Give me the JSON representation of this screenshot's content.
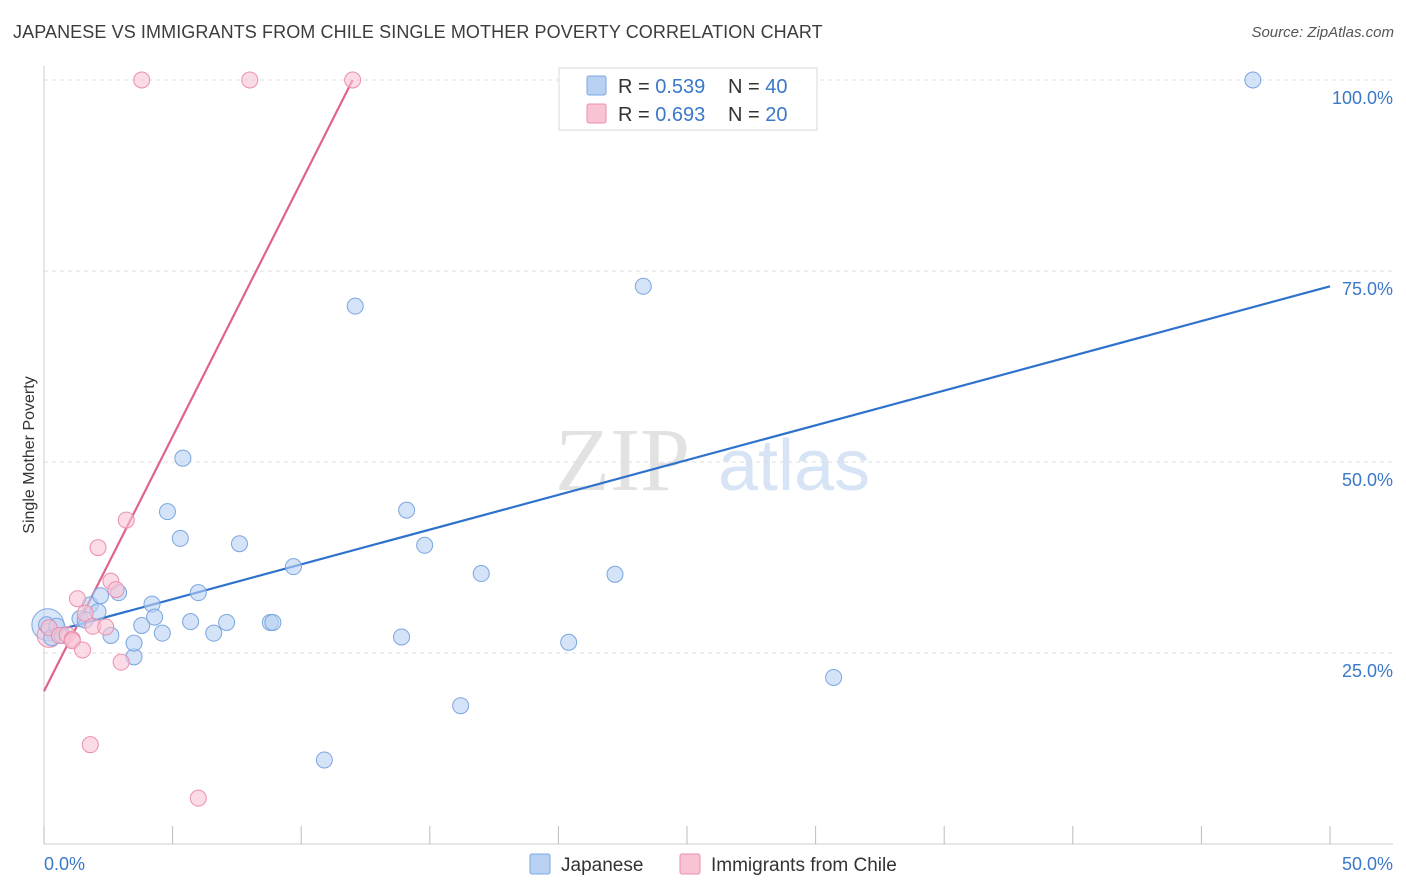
{
  "title": "JAPANESE VS IMMIGRANTS FROM CHILE SINGLE MOTHER POVERTY CORRELATION CHART",
  "source": "Source: ZipAtlas.com",
  "watermark": {
    "zip": "ZIP",
    "atlas": "atlas"
  },
  "legend": {
    "japanese": {
      "r_label": "R = ",
      "r_value": "0.539",
      "n_label": "N = ",
      "n_value": "40"
    },
    "chile": {
      "r_label": "R = ",
      "r_value": "0.693",
      "n_label": "N = ",
      "n_value": "20"
    }
  },
  "bottom_legend": {
    "japanese": "Japanese",
    "chile": "Immigrants from Chile"
  },
  "colors": {
    "blue_fill": "#b8d1f3",
    "blue_stroke": "#7aa6e0",
    "blue_line": "#2e72cc",
    "pink_fill": "#f8c3d3",
    "pink_stroke": "#ec8fad",
    "pink_line": "#e0628e",
    "grid": "#dddddd",
    "axis_text": "#3a78c8"
  },
  "chart_data": {
    "type": "scatter",
    "title": "JAPANESE VS IMMIGRANTS FROM CHILE SINGLE MOTHER POVERTY CORRELATION CHART",
    "xlabel": "",
    "ylabel": "Single Mother Poverty",
    "xlim": [
      0,
      50
    ],
    "ylim": [
      0,
      100
    ],
    "x_tick_labels": [
      "0.0%",
      "50.0%"
    ],
    "y_ticks": [
      25,
      50,
      75,
      100
    ],
    "y_tick_labels": [
      "25.0%",
      "50.0%",
      "75.0%",
      "100.0%"
    ],
    "series": [
      {
        "name": "Japanese",
        "color": "#b8d1f3",
        "r": 0.539,
        "n": 40,
        "points": [
          [
            0.1,
            28.7
          ],
          [
            0.3,
            27.0
          ],
          [
            0.5,
            28.5
          ],
          [
            0.7,
            27.3
          ],
          [
            1.4,
            29.5
          ],
          [
            1.6,
            29.3
          ],
          [
            1.8,
            31.3
          ],
          [
            2.1,
            30.4
          ],
          [
            2.6,
            27.3
          ],
          [
            2.2,
            32.5
          ],
          [
            2.9,
            32.9
          ],
          [
            3.5,
            24.5
          ],
          [
            3.5,
            26.3
          ],
          [
            3.8,
            28.6
          ],
          [
            4.2,
            31.4
          ],
          [
            4.3,
            29.7
          ],
          [
            4.6,
            27.6
          ],
          [
            4.8,
            43.5
          ],
          [
            5.3,
            40.0
          ],
          [
            5.4,
            50.5
          ],
          [
            5.7,
            29.1
          ],
          [
            6.0,
            32.9
          ],
          [
            6.6,
            27.6
          ],
          [
            7.1,
            29.0
          ],
          [
            7.6,
            39.3
          ],
          [
            8.8,
            29.0
          ],
          [
            8.9,
            29.0
          ],
          [
            9.7,
            36.3
          ],
          [
            10.9,
            11.0
          ],
          [
            12.1,
            70.4
          ],
          [
            13.9,
            27.1
          ],
          [
            14.1,
            43.7
          ],
          [
            14.8,
            39.1
          ],
          [
            16.2,
            18.1
          ],
          [
            17.0,
            35.4
          ],
          [
            20.4,
            26.4
          ],
          [
            22.2,
            35.3
          ],
          [
            23.3,
            73.0
          ],
          [
            30.7,
            21.8
          ],
          [
            47.0,
            100.0
          ]
        ],
        "trend_line": {
          "x": [
            0,
            50
          ],
          "y": [
            27.5,
            73.0
          ]
        }
      },
      {
        "name": "Immigrants from Chile",
        "color": "#f8c3d3",
        "r": 0.693,
        "n": 20,
        "points": [
          [
            0.2,
            28.3
          ],
          [
            0.6,
            27.3
          ],
          [
            0.9,
            27.4
          ],
          [
            1.1,
            26.8
          ],
          [
            1.1,
            26.6
          ],
          [
            1.3,
            32.1
          ],
          [
            1.5,
            25.4
          ],
          [
            1.6,
            30.2
          ],
          [
            1.8,
            13.0
          ],
          [
            1.9,
            28.5
          ],
          [
            2.1,
            38.8
          ],
          [
            2.4,
            28.4
          ],
          [
            2.6,
            34.4
          ],
          [
            2.8,
            33.3
          ],
          [
            3.0,
            23.8
          ],
          [
            3.2,
            42.4
          ],
          [
            3.8,
            100.0
          ],
          [
            6.0,
            6.0
          ],
          [
            8.0,
            100.0
          ],
          [
            12.0,
            100.0
          ]
        ],
        "trend_line": {
          "x": [
            0,
            12.0
          ],
          "y": [
            20.0,
            100.0
          ]
        }
      }
    ]
  }
}
